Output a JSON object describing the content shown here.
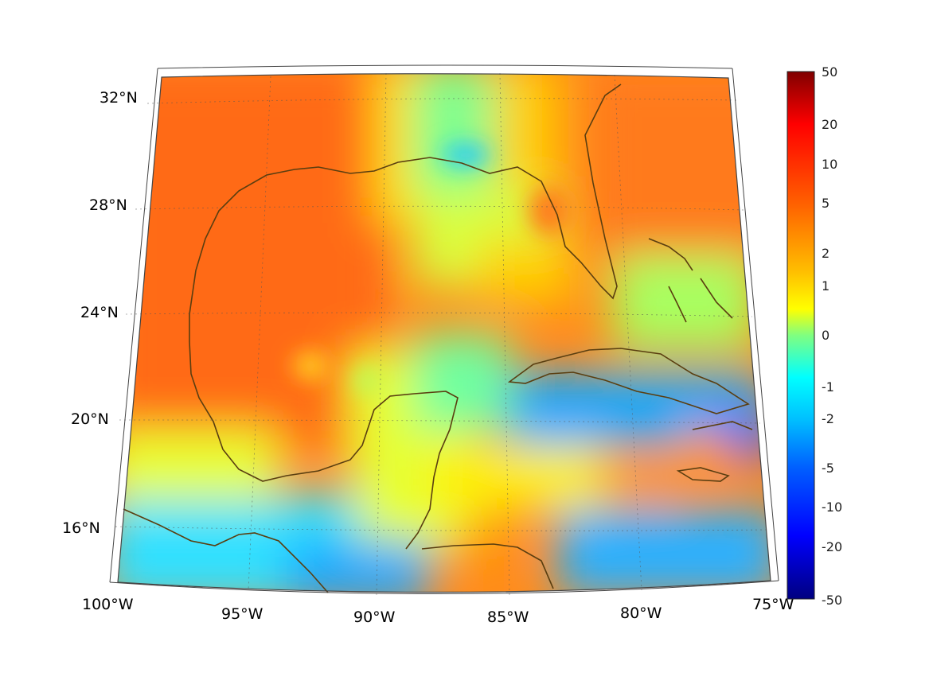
{
  "map": {
    "projection": "conic (curved graticule)",
    "extent": {
      "lon": [
        -100,
        -75
      ],
      "lat": [
        14,
        33
      ]
    },
    "lat_labels": [
      "32°N",
      "28°N",
      "24°N",
      "20°N",
      "16°N"
    ],
    "lon_labels": [
      "100°W",
      "95°W",
      "90°W",
      "85°W",
      "80°W",
      "75°W"
    ],
    "coastline_color": "#5a3e10",
    "graticule": "dotted"
  },
  "colorbar": {
    "colormap": "jet",
    "scale": "symmetric log-like",
    "tick_labels": [
      "50",
      "20",
      "10",
      "5",
      "2",
      "1",
      "0",
      "-1",
      "-2",
      "-5",
      "-10",
      "-20",
      "-50"
    ]
  },
  "regions": [
    {
      "name": "Gulf of Mexico / Texas–Mexico interior",
      "level": "orange-red",
      "approx_value": 5
    },
    {
      "name": "Florida east / Atlantic",
      "level": "orange",
      "approx_value": 4
    },
    {
      "name": "Central band near 90°W–87°W",
      "level": "yellow",
      "approx_value": 1
    },
    {
      "name": "Caribbean south of Cuba",
      "level": "cyan-blue",
      "approx_value": -2
    },
    {
      "name": "Southwest Pacific coast",
      "level": "cyan",
      "approx_value": -1.5
    }
  ]
}
